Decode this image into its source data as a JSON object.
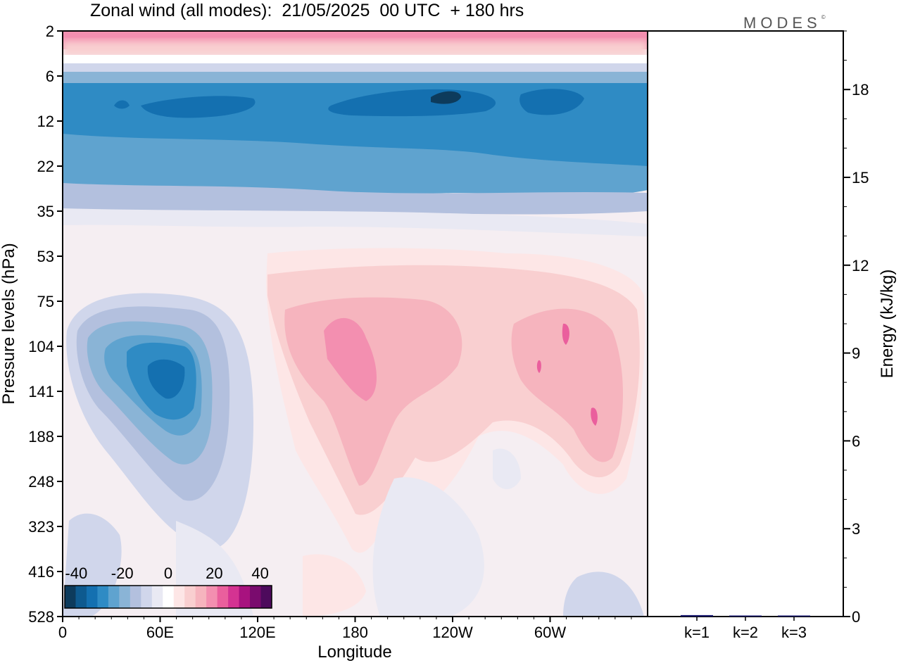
{
  "title": "Zonal wind (all modes):  21/05/2025  00 UTC  + 180 hrs",
  "logo": "MODES",
  "chart_data": [
    {
      "type": "heatmap",
      "title": "Zonal wind (all modes):  21/05/2025  00 UTC  + 180 hrs",
      "xlabel": "Longitude",
      "ylabel": "Pressure levels (hPa)",
      "xticks": [
        "0",
        "60E",
        "120E",
        "180",
        "120W",
        "60W"
      ],
      "yticks": [
        "2",
        "6",
        "12",
        "22",
        "35",
        "53",
        "75",
        "104",
        "141",
        "188",
        "248",
        "323",
        "416",
        "528"
      ],
      "colorbar": {
        "labels": [
          "-40",
          "-20",
          "0",
          "20",
          "40"
        ],
        "range": [
          -45,
          45
        ],
        "colors": [
          "#0d3b5c",
          "#0e5a8f",
          "#1470b0",
          "#2f8bc4",
          "#5fa3cf",
          "#8ab4d6",
          "#b3c0de",
          "#d0d6eb",
          "#e9e9f3",
          "#ffffff",
          "#fde6e6",
          "#f9cfd0",
          "#f6b4be",
          "#f38fb0",
          "#ea5f9d",
          "#d43392",
          "#a8127f",
          "#7a0b6e",
          "#4d0a5c"
        ]
      },
      "features": [
        {
          "label": "easterly jet 6-22 hPa",
          "lon": [
            0,
            360
          ],
          "p": [
            6,
            22
          ],
          "value": -25
        },
        {
          "label": "easterly core 6-12 hPa",
          "lon": [
            170,
            340
          ],
          "p": [
            7,
            11
          ],
          "value": -35
        },
        {
          "label": "westerly band 2 hPa",
          "lon": [
            0,
            360
          ],
          "p": [
            2,
            4
          ],
          "value": 15
        },
        {
          "label": "easterly cell 104-188 hPa",
          "lon": [
            45,
            90
          ],
          "p": [
            104,
            188
          ],
          "value": -30
        },
        {
          "label": "westerly cell 180",
          "lon": [
            160,
            200
          ],
          "p": [
            90,
            160
          ],
          "value": 20
        },
        {
          "label": "westerly cell 60W",
          "lon": [
            275,
            345
          ],
          "p": [
            90,
            210
          ],
          "value": 15
        }
      ]
    },
    {
      "type": "bar",
      "ylabel": "Energy (kJ/kg)",
      "categories": [
        "k=1",
        "k=2",
        "k=3"
      ],
      "values": [
        0.05,
        0.03,
        0.03
      ],
      "ylim": [
        0,
        20
      ],
      "yticks": [
        "0",
        "3",
        "6",
        "9",
        "12",
        "15",
        "18"
      ],
      "color": "#1a1a6e"
    }
  ]
}
